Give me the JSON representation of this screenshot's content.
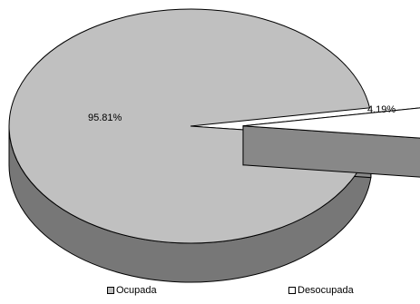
{
  "chart_data": {
    "type": "pie",
    "style": "3d-exploded",
    "categories": [
      "Ocupada",
      "Desocupada"
    ],
    "values": [
      95.81,
      4.19
    ],
    "labels": [
      "95.81%",
      "4.19%"
    ],
    "colors": [
      "#c0c0c0",
      "#ffffff"
    ],
    "side_colors": [
      "#777777",
      "#888888"
    ],
    "exploded": [
      false,
      true
    ],
    "legend_position": "bottom"
  }
}
